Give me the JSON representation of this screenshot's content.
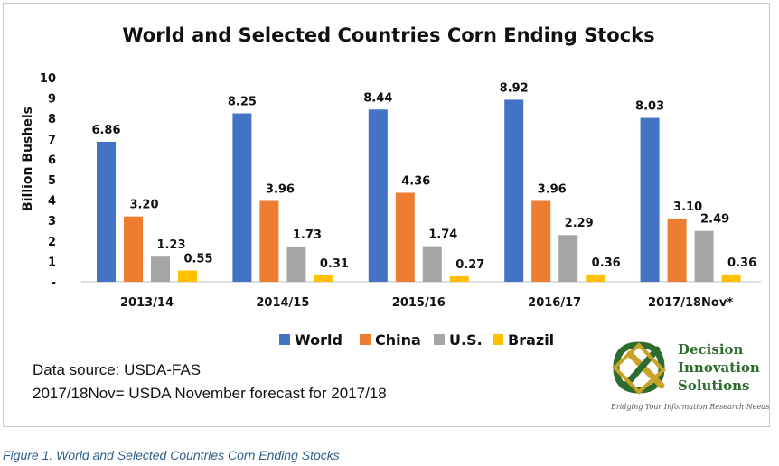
{
  "chart_data": {
    "type": "bar",
    "title": "World and Selected Countries Corn Ending Stocks",
    "ylabel": "Billion Bushels",
    "xlabel": "",
    "ylim": [
      0,
      10
    ],
    "yticks": [
      "-",
      "1",
      "2",
      "3",
      "4",
      "5",
      "6",
      "7",
      "8",
      "9",
      "10"
    ],
    "categories": [
      "2013/14",
      "2014/15",
      "2015/16",
      "2016/17",
      "2017/18Nov*"
    ],
    "series": [
      {
        "name": "World",
        "color": "#4472C4",
        "values": [
          6.86,
          8.25,
          8.44,
          8.92,
          8.03
        ],
        "labels": [
          "6.86",
          "8.25",
          "8.44",
          "8.92",
          "8.03"
        ]
      },
      {
        "name": "China",
        "color": "#ED7D31",
        "values": [
          3.2,
          3.96,
          4.36,
          3.96,
          3.1
        ],
        "labels": [
          "3.20",
          "3.96",
          "4.36",
          "3.96",
          "3.10"
        ]
      },
      {
        "name": "U.S.",
        "color": "#A5A5A5",
        "values": [
          1.23,
          1.73,
          1.74,
          2.29,
          2.49
        ],
        "labels": [
          "1.23",
          "1.73",
          "1.74",
          "2.29",
          "2.49"
        ]
      },
      {
        "name": "Brazil",
        "color": "#FFC000",
        "values": [
          0.55,
          0.31,
          0.27,
          0.36,
          0.36
        ],
        "labels": [
          "0.55",
          "0.31",
          "0.27",
          "0.36",
          "0.36"
        ]
      }
    ],
    "legend_position": "bottom",
    "grid": false
  },
  "notes": {
    "source": "Data source: USDA-FAS",
    "forecast": "2017/18Nov= USDA November forecast for 2017/18"
  },
  "logo": {
    "line1": "Decision",
    "line2": "Innovation",
    "line3": "Solutions",
    "tagline": "Bridging Your Information Research Needs",
    "color": "#2e6b2e"
  },
  "caption": "Figure 1. World and Selected Countries Corn Ending Stocks"
}
